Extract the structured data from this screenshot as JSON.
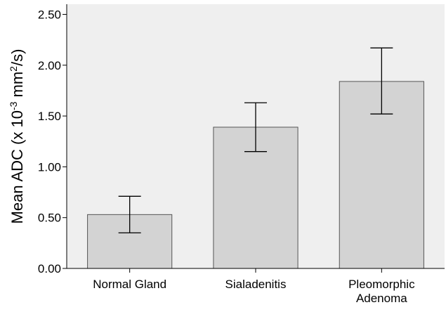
{
  "chart_data": {
    "type": "bar",
    "categories": [
      [
        "Normal Gland"
      ],
      [
        "Sialadenitis"
      ],
      [
        "Pleomorphic",
        "Adenoma"
      ]
    ],
    "values": [
      0.53,
      1.39,
      1.84
    ],
    "error_low": [
      0.35,
      1.15,
      1.52
    ],
    "error_high": [
      0.71,
      1.63,
      2.17
    ],
    "ylim": [
      0,
      2.6
    ],
    "yticks": [
      "0.00",
      "0.50",
      "1.00",
      "1.50",
      "2.00",
      "2.50"
    ],
    "ylabel": {
      "prefix": "Mean ADC (x 10",
      "exp1": "-3",
      "mid": " mm",
      "exp2": "2",
      "suffix": "/s)"
    },
    "xlabel": "",
    "title": "",
    "grid": false,
    "colors": {
      "plot_bg": "#efefef",
      "bar_fill": "#d3d3d3",
      "bar_stroke": "#555555",
      "error_bar": "#000000",
      "frame": "#000000"
    }
  }
}
